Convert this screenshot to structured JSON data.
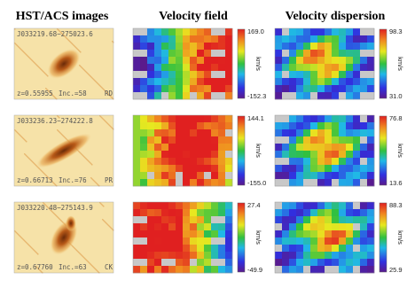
{
  "headers": [
    "HST/ACS images",
    "Velocity field",
    "Velocity dispersion"
  ],
  "rows": [
    {
      "id": "J033219.68−275023.6",
      "z": "z=0.55955",
      "inc": "Inc.=58",
      "class": "RD",
      "velocity": {
        "max": "169.0",
        "min": "-152.3",
        "unit": "km/s"
      },
      "dispersion": {
        "max": "98.3",
        "min": "31.0",
        "unit": "km/s"
      }
    },
    {
      "id": "J033236.23−274222.8",
      "z": "z=0.66713",
      "inc": "Inc.=76",
      "class": "PR",
      "velocity": {
        "max": "144.1",
        "min": "-155.0",
        "unit": "km/s"
      },
      "dispersion": {
        "max": "76.8",
        "min": "13.6",
        "unit": "km/s"
      }
    },
    {
      "id": "J033220.48−275143.9",
      "z": "z=0.67760",
      "inc": "Inc.=63",
      "class": "CK",
      "velocity": {
        "max": "27.4",
        "min": "-49.9",
        "unit": "km/s"
      },
      "dispersion": {
        "max": "88.3",
        "min": "25.9",
        "unit": "km/s"
      }
    }
  ]
}
